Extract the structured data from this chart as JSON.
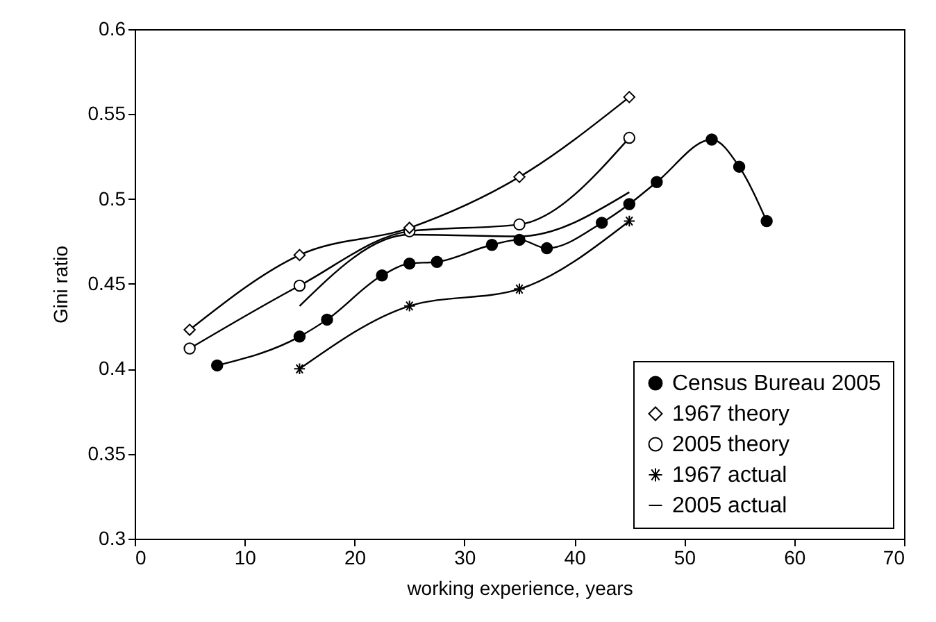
{
  "chart_data": {
    "type": "line",
    "xlabel": "working experience, years",
    "ylabel": "Gini ratio",
    "xlim": [
      0,
      70
    ],
    "xticks": [
      0,
      10,
      20,
      30,
      40,
      50,
      60,
      70
    ],
    "ylim": [
      0.3,
      0.6
    ],
    "yticks": [
      0.3,
      0.35,
      0.4,
      0.45,
      0.5,
      0.55,
      0.6
    ],
    "grid": false,
    "legend": "bottom right",
    "series": [
      {
        "name": "Census Bureau 2005",
        "color": "#000000",
        "marker": "circle",
        "x": [
          7.5,
          15,
          17.5,
          22.5,
          25,
          27.5,
          32.5,
          35,
          37.5,
          42.5,
          45,
          47.5,
          52.5,
          55,
          57.5
        ],
        "values": [
          0.402,
          0.419,
          0.429,
          0.455,
          0.462,
          0.463,
          0.473,
          0.476,
          0.471,
          0.486,
          0.497,
          0.51,
          0.535,
          0.519,
          0.487
        ]
      },
      {
        "name": "1967 theory",
        "color": "#000000",
        "marker": "diamond",
        "x": [
          5,
          15,
          25,
          35,
          45
        ],
        "values": [
          0.423,
          0.467,
          0.483,
          0.513,
          0.56
        ]
      },
      {
        "name": "2005 theory",
        "color": "#000000",
        "marker": "circle",
        "x": [
          5,
          15,
          25,
          35,
          45
        ],
        "values": [
          0.412,
          0.449,
          0.481,
          0.485,
          0.536
        ]
      },
      {
        "name": "1967 actual",
        "color": "#000000",
        "marker": "cross",
        "x": [
          15,
          25,
          35,
          45
        ],
        "values": [
          0.4,
          0.437,
          0.447,
          0.487
        ]
      },
      {
        "name": "2005 actual",
        "color": "#000000",
        "marker": "none",
        "x": [
          15,
          25,
          35,
          45
        ],
        "values": [
          0.437,
          0.479,
          0.478,
          0.504
        ]
      }
    ]
  }
}
